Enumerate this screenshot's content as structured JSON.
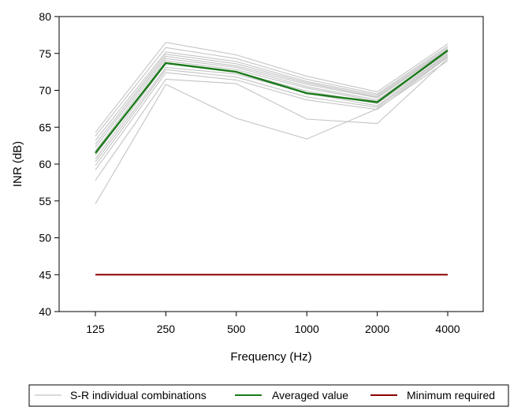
{
  "chart_data": {
    "type": "line",
    "categories": [
      "125",
      "250",
      "500",
      "1000",
      "2000",
      "4000"
    ],
    "xlabel": "Frequency (Hz)",
    "ylabel": "INR (dB)",
    "ylim": [
      40,
      80
    ],
    "yticks": [
      40,
      45,
      50,
      55,
      60,
      65,
      70,
      75,
      80
    ],
    "grid": false,
    "legend_position": "bottom",
    "individual_series_label": "S-R individual combinations",
    "individual_series": [
      [
        64.3,
        76.5,
        74.8,
        71.9,
        69.8,
        76.3
      ],
      [
        63.8,
        75.8,
        74.3,
        71.5,
        69.5,
        76.0
      ],
      [
        63.2,
        75.2,
        73.9,
        71.2,
        69.3,
        75.8
      ],
      [
        62.7,
        74.9,
        73.6,
        71.0,
        69.1,
        75.6
      ],
      [
        62.3,
        74.6,
        73.3,
        70.8,
        69.0,
        75.5
      ],
      [
        61.8,
        74.3,
        73.1,
        70.5,
        68.7,
        75.3
      ],
      [
        61.2,
        74.0,
        72.8,
        70.3,
        68.5,
        75.1
      ],
      [
        60.7,
        73.6,
        72.5,
        69.9,
        68.2,
        74.9
      ],
      [
        60.3,
        73.1,
        72.2,
        69.6,
        67.9,
        74.8
      ],
      [
        59.8,
        72.8,
        71.8,
        69.1,
        67.7,
        74.6
      ],
      [
        59.2,
        72.4,
        71.4,
        68.7,
        67.4,
        74.5
      ],
      [
        57.8,
        71.5,
        70.9,
        66.1,
        65.5,
        74.3
      ],
      [
        54.6,
        70.8,
        66.2,
        63.4,
        67.5,
        74.0
      ]
    ],
    "series": [
      {
        "name": "Averaged value",
        "values": [
          61.5,
          73.7,
          72.5,
          69.6,
          68.4,
          75.4
        ],
        "color": "#1a7a1a"
      },
      {
        "name": "Minimum required",
        "values": [
          45,
          45,
          45,
          45,
          45,
          45
        ],
        "color": "#8b0000"
      }
    ],
    "colors": {
      "individual": "#c4c4c4",
      "averaged": "#1a7a1a",
      "minimum": "#8b0000"
    }
  }
}
